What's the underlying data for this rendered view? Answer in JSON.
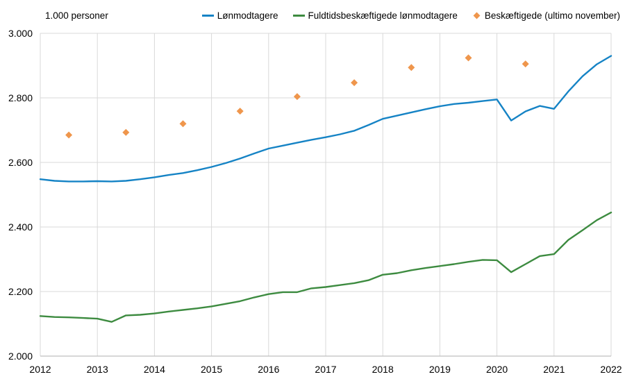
{
  "chart_data": {
    "type": "line",
    "title": "",
    "unit_label": "1.000 personer",
    "xlabel": "",
    "ylabel": "1.000 personer",
    "xlim": [
      2012,
      2022
    ],
    "ylim": [
      2000,
      3000
    ],
    "grid": true,
    "legend_position": "top",
    "x_ticks": [
      2012,
      2013,
      2014,
      2015,
      2016,
      2017,
      2018,
      2019,
      2020,
      2021,
      2022
    ],
    "y_ticks": [
      {
        "value": 3000,
        "label": "3.000"
      },
      {
        "value": 2800,
        "label": "2.800"
      },
      {
        "value": 2600,
        "label": "2.600"
      },
      {
        "value": 2400,
        "label": "2.400"
      },
      {
        "value": 2200,
        "label": "2.200"
      },
      {
        "value": 2000,
        "label": "2.000"
      }
    ],
    "series": [
      {
        "name": "Lønmodtagere",
        "type": "line",
        "color": "#1583c5",
        "x": [
          2012.0,
          2012.25,
          2012.5,
          2012.75,
          2013.0,
          2013.25,
          2013.5,
          2013.75,
          2014.0,
          2014.25,
          2014.5,
          2014.75,
          2015.0,
          2015.25,
          2015.5,
          2015.75,
          2016.0,
          2016.25,
          2016.5,
          2016.75,
          2017.0,
          2017.25,
          2017.5,
          2017.75,
          2018.0,
          2018.25,
          2018.5,
          2018.75,
          2019.0,
          2019.25,
          2019.5,
          2019.75,
          2020.0,
          2020.25,
          2020.5,
          2020.75,
          2021.0,
          2021.25,
          2021.5,
          2021.75,
          2022.0
        ],
        "values": [
          2548,
          2543,
          2541,
          2541,
          2542,
          2541,
          2543,
          2548,
          2554,
          2561,
          2567,
          2576,
          2586,
          2598,
          2612,
          2628,
          2643,
          2652,
          2661,
          2670,
          2678,
          2687,
          2698,
          2716,
          2735,
          2745,
          2755,
          2765,
          2774,
          2781,
          2785,
          2790,
          2795,
          2730,
          2758,
          2775,
          2766,
          2820,
          2867,
          2904,
          2930
        ]
      },
      {
        "name": "Fuldtidsbeskæftigede lønmodtagere",
        "type": "line",
        "color": "#3d8b40",
        "x": [
          2012.0,
          2012.25,
          2012.5,
          2012.75,
          2013.0,
          2013.25,
          2013.5,
          2013.75,
          2014.0,
          2014.25,
          2014.5,
          2014.75,
          2015.0,
          2015.25,
          2015.5,
          2015.75,
          2016.0,
          2016.25,
          2016.5,
          2016.75,
          2017.0,
          2017.25,
          2017.5,
          2017.75,
          2018.0,
          2018.25,
          2018.5,
          2018.75,
          2019.0,
          2019.25,
          2019.5,
          2019.75,
          2020.0,
          2020.25,
          2020.5,
          2020.75,
          2021.0,
          2021.25,
          2021.5,
          2021.75,
          2022.0
        ],
        "values": [
          2124,
          2121,
          2120,
          2118,
          2116,
          2106,
          2126,
          2128,
          2132,
          2138,
          2143,
          2148,
          2154,
          2162,
          2170,
          2182,
          2192,
          2198,
          2198,
          2210,
          2214,
          2220,
          2226,
          2235,
          2252,
          2257,
          2266,
          2273,
          2279,
          2285,
          2292,
          2298,
          2297,
          2260,
          2285,
          2310,
          2316,
          2360,
          2390,
          2421,
          2445
        ]
      },
      {
        "name": "Beskæftigede (ultimo november)",
        "type": "scatter",
        "marker": "diamond",
        "color": "#ef964c",
        "x": [
          2012.5,
          2013.5,
          2014.5,
          2015.5,
          2016.5,
          2017.5,
          2018.5,
          2019.5,
          2020.5
        ],
        "values": [
          2685,
          2693,
          2720,
          2759,
          2804,
          2847,
          2894,
          2924,
          2905
        ]
      }
    ],
    "colors": {
      "grid": "#d9d9d9",
      "axis": "#bfbfbf",
      "text": "#000000",
      "background": "#ffffff"
    }
  }
}
